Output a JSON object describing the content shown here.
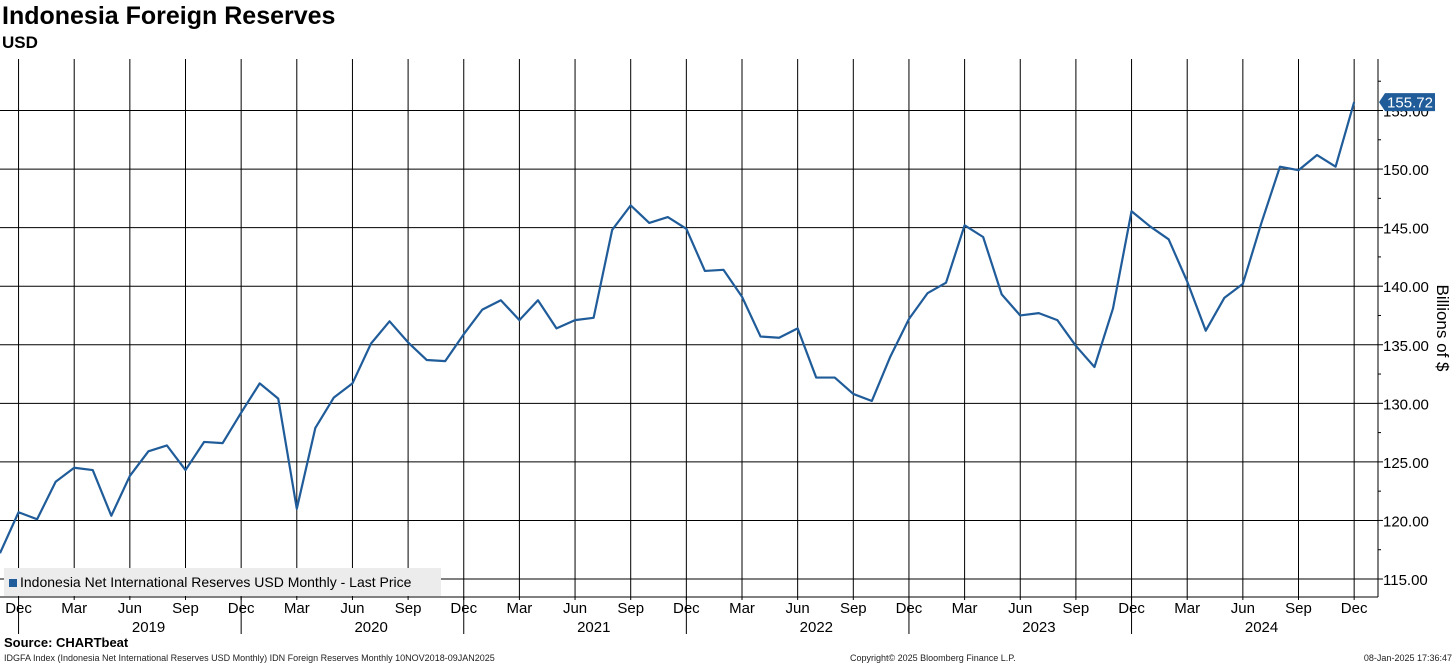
{
  "title": "Indonesia Foreign Reserves",
  "subtitle": "USD",
  "source": "Source: CHARTbeat",
  "footer": {
    "left": "IDGFA Index (Indonesia Net International Reserves USD Monthly) IDN Foreign Reserves  Monthly 10NOV2018-09JAN2025",
    "center": "Copyright© 2025 Bloomberg Finance L.P.",
    "right": "08-Jan-2025 17:36:47"
  },
  "colors": {
    "series": "#1f5c99",
    "grid": "#000000",
    "label_bg": "#1f5c99"
  },
  "chart_data": {
    "type": "line",
    "ylabel": "Billions of $",
    "ylim": [
      113.5,
      157.5
    ],
    "yticks": [
      115,
      120,
      125,
      130,
      135,
      140,
      145,
      150,
      155
    ],
    "grid": true,
    "legend_placement": "bottom-left",
    "month_ticks": [
      "Dec",
      "Mar",
      "Jun",
      "Sep",
      "Dec",
      "Mar",
      "Jun",
      "Sep",
      "Dec",
      "Mar",
      "Jun",
      "Sep",
      "Dec",
      "Mar",
      "Jun",
      "Sep",
      "Dec",
      "Mar",
      "Jun",
      "Sep",
      "Dec",
      "Mar",
      "Jun",
      "Sep",
      "Dec"
    ],
    "year_labels": [
      "2019",
      "2020",
      "2021",
      "2022",
      "2023",
      "2024"
    ],
    "last_value_label": "155.72",
    "x": [
      "2018-11",
      "2018-12",
      "2019-01",
      "2019-02",
      "2019-03",
      "2019-04",
      "2019-05",
      "2019-06",
      "2019-07",
      "2019-08",
      "2019-09",
      "2019-10",
      "2019-11",
      "2019-12",
      "2020-01",
      "2020-02",
      "2020-03",
      "2020-04",
      "2020-05",
      "2020-06",
      "2020-07",
      "2020-08",
      "2020-09",
      "2020-10",
      "2020-11",
      "2020-12",
      "2021-01",
      "2021-02",
      "2021-03",
      "2021-04",
      "2021-05",
      "2021-06",
      "2021-07",
      "2021-08",
      "2021-09",
      "2021-10",
      "2021-11",
      "2021-12",
      "2022-01",
      "2022-02",
      "2022-03",
      "2022-04",
      "2022-05",
      "2022-06",
      "2022-07",
      "2022-08",
      "2022-09",
      "2022-10",
      "2022-11",
      "2022-12",
      "2023-01",
      "2023-02",
      "2023-03",
      "2023-04",
      "2023-05",
      "2023-06",
      "2023-07",
      "2023-08",
      "2023-09",
      "2023-10",
      "2023-11",
      "2023-12",
      "2024-01",
      "2024-02",
      "2024-03",
      "2024-04",
      "2024-05",
      "2024-06",
      "2024-07",
      "2024-08",
      "2024-09",
      "2024-10",
      "2024-11",
      "2024-12"
    ],
    "series": [
      {
        "name": "Indonesia Net International Reserves USD Monthly - Last Price",
        "values": [
          117.2,
          120.7,
          120.1,
          123.3,
          124.5,
          124.3,
          120.4,
          123.8,
          125.9,
          126.4,
          124.3,
          126.7,
          126.6,
          129.2,
          131.7,
          130.4,
          121.0,
          127.9,
          130.5,
          131.7,
          135.1,
          137.0,
          135.2,
          133.7,
          133.6,
          135.9,
          138.0,
          138.8,
          137.1,
          138.8,
          136.4,
          137.1,
          137.3,
          144.8,
          146.9,
          145.4,
          145.9,
          144.9,
          141.3,
          141.4,
          139.1,
          135.7,
          135.6,
          136.4,
          132.2,
          132.2,
          130.8,
          130.2,
          134.0,
          137.2,
          139.4,
          140.3,
          145.2,
          144.2,
          139.3,
          137.5,
          137.7,
          137.1,
          134.9,
          133.1,
          138.1,
          146.4,
          145.1,
          144.0,
          140.4,
          136.2,
          139.0,
          140.2,
          145.4,
          150.2,
          149.9,
          151.2,
          150.2,
          155.72
        ]
      }
    ]
  }
}
